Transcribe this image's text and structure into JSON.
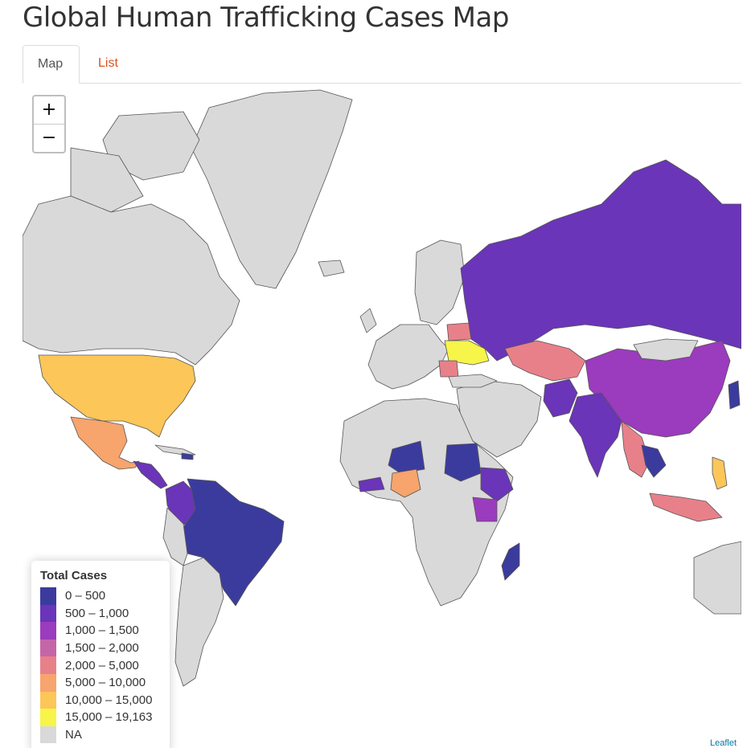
{
  "page": {
    "title": "Global Human Trafficking Cases Map"
  },
  "tabs": [
    {
      "label": "Map",
      "active": true
    },
    {
      "label": "List",
      "active": false
    }
  ],
  "zoom": {
    "in_label": "+",
    "out_label": "−"
  },
  "legend": {
    "title": "Total Cases",
    "items": [
      {
        "label": "0 – 500",
        "color": "#3b3b9e"
      },
      {
        "label": "500 – 1,000",
        "color": "#6a35b8"
      },
      {
        "label": "1,000 – 1,500",
        "color": "#9b3bbd"
      },
      {
        "label": "1,500 – 2,000",
        "color": "#c565a8"
      },
      {
        "label": "2,000 – 5,000",
        "color": "#e8808a"
      },
      {
        "label": "5,000 – 10,000",
        "color": "#f7a46d"
      },
      {
        "label": "10,000 – 15,000",
        "color": "#fcc659"
      },
      {
        "label": "15,000 – 19,163",
        "color": "#f7f44a"
      },
      {
        "label": "NA",
        "color": "#d9d9d9"
      }
    ]
  },
  "colors": {
    "na": "#d9d9d9",
    "border": "#555555",
    "tab_link": "#d9531e"
  },
  "attribution": "Leaflet"
}
